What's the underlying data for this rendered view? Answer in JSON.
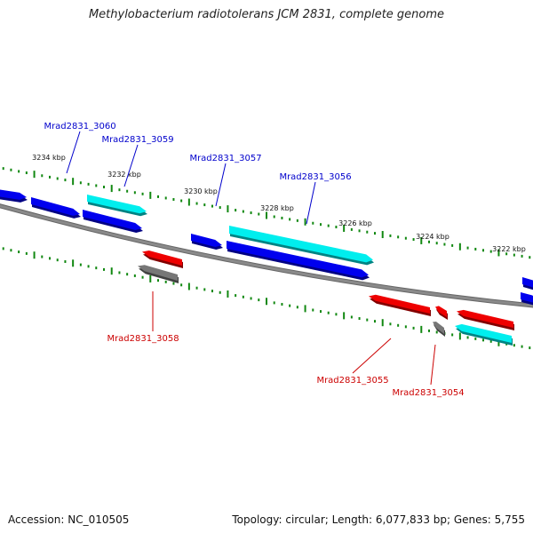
{
  "title": "Methylobacterium radiotolerans JCM 2831, complete genome",
  "footer": {
    "accession": "Accession: NC_010505",
    "summary": "Topology: circular; Length: 6,077,833 bp; Genes: 5,755"
  },
  "colors": {
    "backbone": "#8a8a8a",
    "tick": "#118811",
    "blue": "#0000ee",
    "cyan": "#00eeee",
    "red": "#ee0000",
    "gray": "#777777",
    "label_blue": "#0000cc",
    "label_red": "#cc0000"
  },
  "ticks": [
    {
      "label": "3234 kbp"
    },
    {
      "label": "3232 kbp"
    },
    {
      "label": "3230 kbp"
    },
    {
      "label": "3228 kbp"
    },
    {
      "label": "3226 kbp"
    },
    {
      "label": "3224 kbp"
    },
    {
      "label": "3222 kbp"
    }
  ],
  "gene_labels": [
    {
      "text": "Mrad2831_3060",
      "color": "label_blue"
    },
    {
      "text": "Mrad2831_3059",
      "color": "label_blue"
    },
    {
      "text": "Mrad2831_3057",
      "color": "label_blue"
    },
    {
      "text": "Mrad2831_3056",
      "color": "label_blue"
    },
    {
      "text": "Mrad2831_3058",
      "color": "label_red"
    },
    {
      "text": "Mrad2831_3055",
      "color": "label_red"
    },
    {
      "text": "Mrad2831_3054",
      "color": "label_red"
    }
  ],
  "genes": [
    {
      "color": "blue",
      "strand": "+"
    },
    {
      "color": "blue",
      "strand": "+"
    },
    {
      "color": "cyan",
      "strand": "+"
    },
    {
      "color": "blue",
      "strand": "+"
    },
    {
      "color": "blue",
      "strand": "+"
    },
    {
      "color": "cyan",
      "strand": "+"
    },
    {
      "color": "blue",
      "strand": "+"
    },
    {
      "color": "blue",
      "strand": "+"
    },
    {
      "color": "blue",
      "strand": "+"
    },
    {
      "color": "red",
      "strand": "-"
    },
    {
      "color": "gray",
      "strand": "-"
    },
    {
      "color": "red",
      "strand": "-"
    },
    {
      "color": "red",
      "strand": "-"
    },
    {
      "color": "gray",
      "strand": "-"
    },
    {
      "color": "red",
      "strand": "-"
    },
    {
      "color": "cyan",
      "strand": "-"
    }
  ]
}
